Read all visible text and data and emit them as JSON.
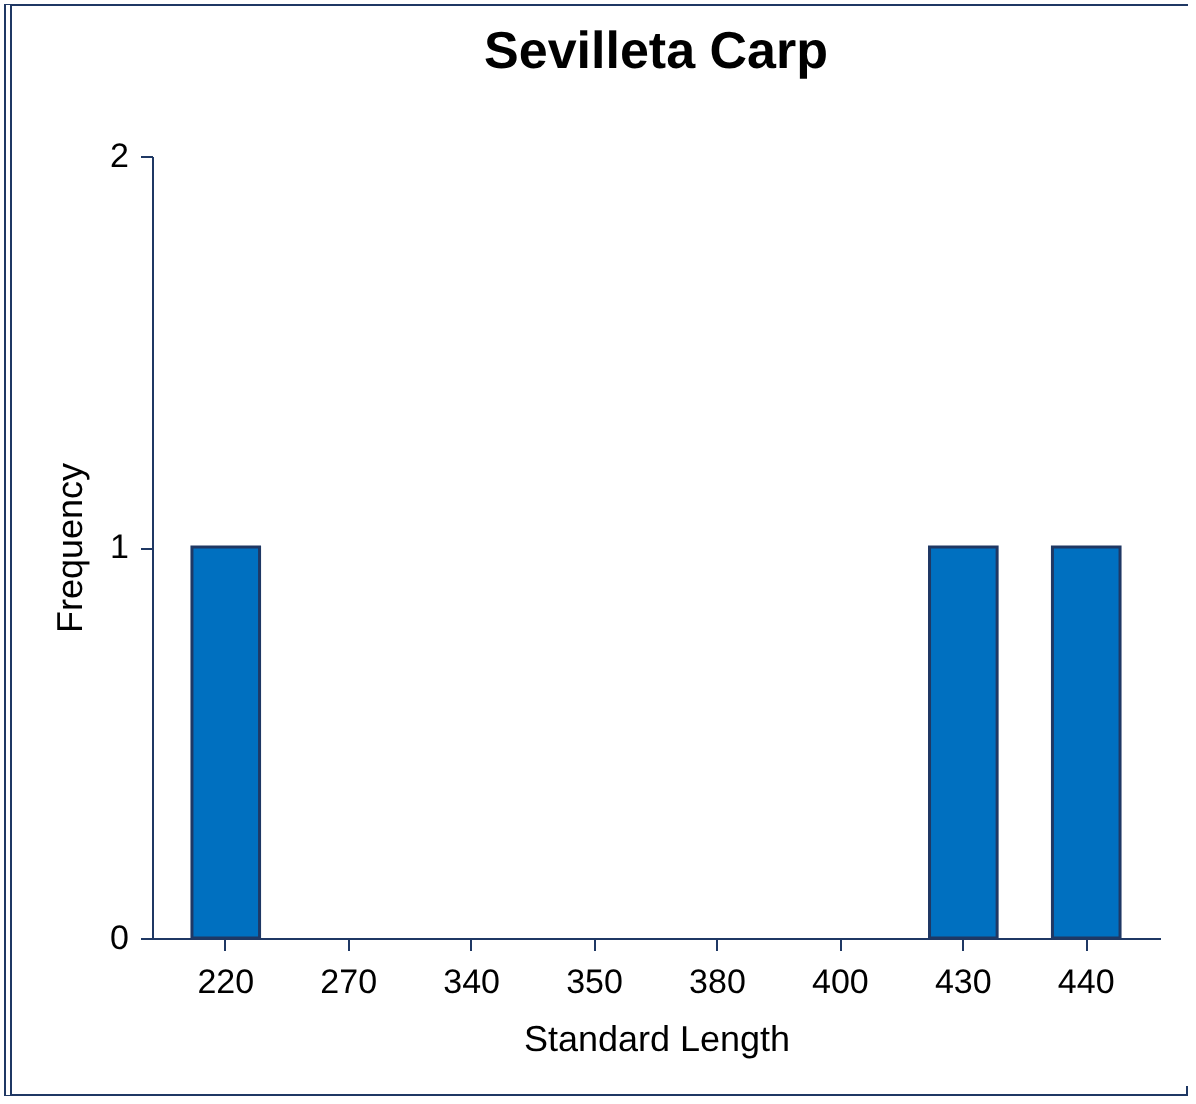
{
  "chart_data": {
    "type": "bar",
    "title": "Sevilleta Carp",
    "xlabel": "Standard Length",
    "ylabel": "Frequency",
    "categories": [
      "220",
      "270",
      "340",
      "350",
      "380",
      "400",
      "430",
      "440"
    ],
    "values": [
      1,
      0,
      0,
      0,
      0,
      0,
      1,
      1
    ],
    "color": "#0070c0",
    "ylim": [
      0,
      2
    ],
    "yticks": [
      0,
      1,
      2
    ],
    "grid": false
  }
}
